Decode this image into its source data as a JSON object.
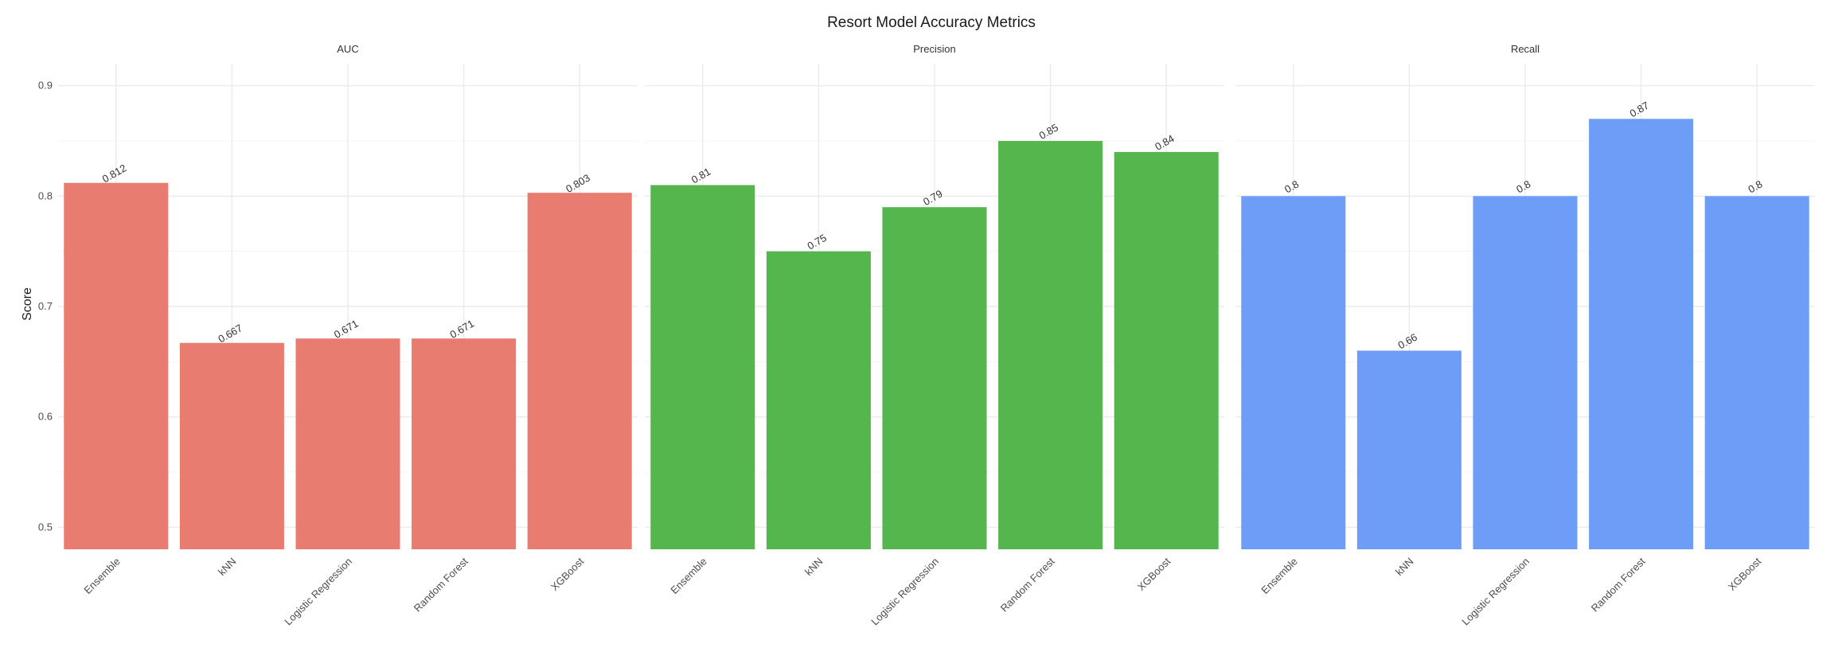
{
  "chart_data": {
    "type": "bar",
    "title": "Resort Model Accuracy Metrics",
    "ylabel": "Score",
    "xlabel": "",
    "ylim": [
      0.48,
      0.92
    ],
    "yticks": [
      "0.5",
      "0.6",
      "0.7",
      "0.8",
      "0.9"
    ],
    "grid": true,
    "legend": "none",
    "categories": [
      "Ensemble",
      "kNN",
      "Logistic Regression",
      "Random Forest",
      "XGBoost"
    ],
    "panels": [
      {
        "name": "AUC",
        "color": "#E87C71",
        "values": [
          0.812,
          0.667,
          0.671,
          0.671,
          0.803
        ],
        "labels": [
          "0.812",
          "0.667",
          "0.671",
          "0.671",
          "0.803"
        ]
      },
      {
        "name": "Precision",
        "color": "#55B64E",
        "values": [
          0.81,
          0.75,
          0.79,
          0.85,
          0.84
        ],
        "labels": [
          "0.81",
          "0.75",
          "0.79",
          "0.85",
          "0.84"
        ]
      },
      {
        "name": "Recall",
        "color": "#6E9DF7",
        "values": [
          0.8,
          0.66,
          0.8,
          0.87,
          0.8
        ],
        "labels": [
          "0.8",
          "0.66",
          "0.8",
          "0.87",
          "0.8"
        ]
      }
    ]
  }
}
